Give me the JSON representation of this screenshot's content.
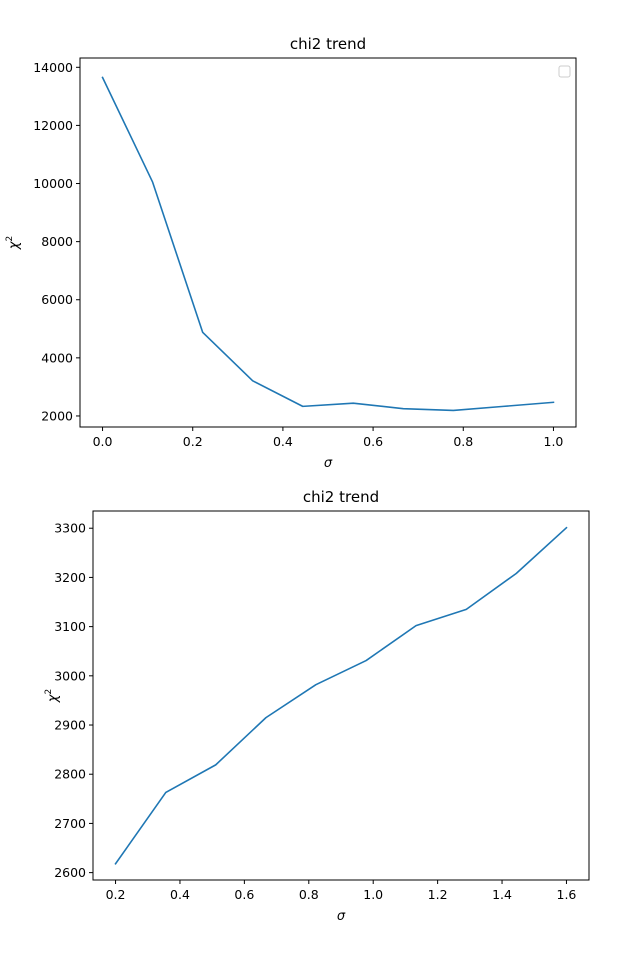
{
  "figure": {
    "background": "#ffffff",
    "line_color": "#1f77b4"
  },
  "chart_data": [
    {
      "type": "line",
      "title": "chi2 trend",
      "xlabel": "σ",
      "ylabel": "χ",
      "ylabel_sup": "2",
      "xlim": [
        -0.05,
        1.05
      ],
      "ylim": [
        1620,
        14320
      ],
      "xticks": [
        0.0,
        0.2,
        0.4,
        0.6,
        0.8,
        1.0
      ],
      "xtick_labels": [
        "0.0",
        "0.2",
        "0.4",
        "0.6",
        "0.8",
        "1.0"
      ],
      "yticks": [
        2000,
        4000,
        6000,
        8000,
        10000,
        12000,
        14000
      ],
      "ytick_labels": [
        "2000",
        "4000",
        "6000",
        "8000",
        "10000",
        "12000",
        "14000"
      ],
      "legend": "top-right (empty box)",
      "grid": false,
      "series": [
        {
          "x": [
            0.0,
            0.111,
            0.222,
            0.333,
            0.444,
            0.556,
            0.667,
            0.778,
            0.889,
            1.0
          ],
          "y": [
            13650,
            10050,
            4880,
            3210,
            2330,
            2440,
            2250,
            2190,
            2330,
            2470
          ]
        }
      ]
    },
    {
      "type": "line",
      "title": "chi2 trend",
      "xlabel": "σ",
      "ylabel": "χ",
      "ylabel_sup": "2",
      "xlim": [
        0.13,
        1.67
      ],
      "ylim": [
        2585,
        3335
      ],
      "xticks": [
        0.2,
        0.4,
        0.6,
        0.8,
        1.0,
        1.2,
        1.4,
        1.6
      ],
      "xtick_labels": [
        "0.2",
        "0.4",
        "0.6",
        "0.8",
        "1.0",
        "1.2",
        "1.4",
        "1.6"
      ],
      "yticks": [
        2600,
        2700,
        2800,
        2900,
        3000,
        3100,
        3200,
        3300
      ],
      "ytick_labels": [
        "2600",
        "2700",
        "2800",
        "2900",
        "3000",
        "3100",
        "3200",
        "3300"
      ],
      "grid": false,
      "series": [
        {
          "x": [
            0.2,
            0.356,
            0.511,
            0.667,
            0.822,
            0.978,
            1.133,
            1.289,
            1.444,
            1.6
          ],
          "y": [
            2618,
            2763,
            2819,
            2915,
            2982,
            3031,
            3102,
            3135,
            3208,
            3301
          ]
        }
      ]
    }
  ]
}
